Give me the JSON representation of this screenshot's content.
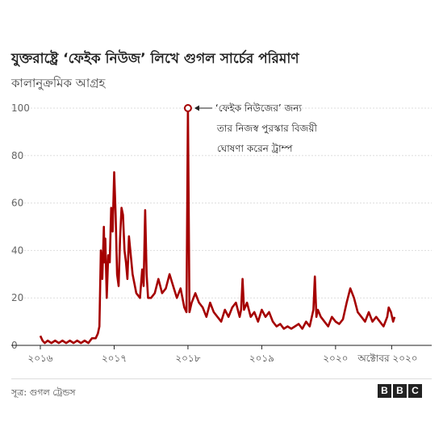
{
  "title": "যুক্তরাষ্ট্রে ‘ফেইক নিউজ’  লিখে গুগল সার্চের পরিমাণ",
  "subtitle": "কালানুক্রমিক আগ্রহ",
  "source": "সূত্র: গুগল ট্রেন্ডস",
  "logo": [
    "B",
    "B",
    "C"
  ],
  "annotation": {
    "lines": [
      "‘ফেইক নিউজের’ জন্য",
      "তার নিজস্ব পুরস্কার বিজয়ী",
      "ঘোষণা করেন ট্রাম্প"
    ],
    "x": 2018.0,
    "y": 100
  },
  "colors": {
    "line": "#a50000",
    "grid": "#dddddd",
    "axis": "#222222"
  },
  "chart_data": {
    "type": "line",
    "title": "যুক্তরাষ্ট্রে ‘ফেইক নিউজ’  লিখে গুগল সার্চের পরিমাণ",
    "ylabel": "কালানুক্রমিক আগ্রহ",
    "xlim": [
      2016.0,
      2020.92
    ],
    "ylim": [
      0,
      100
    ],
    "y_ticks": [
      0,
      20,
      40,
      60,
      80,
      100
    ],
    "x_ticks": [
      {
        "value": 2016.0,
        "label": "২০১৬"
      },
      {
        "value": 2017.0,
        "label": "২০১৭"
      },
      {
        "value": 2018.0,
        "label": "২০১৮"
      },
      {
        "value": 2019.0,
        "label": "২০১৯"
      },
      {
        "value": 2020.0,
        "label": "২০২০"
      },
      {
        "value": 2020.76,
        "label": "অক্টোবর ২০২০"
      }
    ],
    "grid": true,
    "series": [
      {
        "x": [
          2016.0,
          2016.03,
          2016.06,
          2016.1,
          2016.15,
          2016.2,
          2016.25,
          2016.3,
          2016.35,
          2016.4,
          2016.45,
          2016.5,
          2016.55,
          2016.6,
          2016.65,
          2016.7,
          2016.75,
          2016.78,
          2016.8,
          2016.82,
          2016.84,
          2016.86,
          2016.87,
          2016.88,
          2016.9,
          2016.92,
          2016.94,
          2016.96,
          2016.98,
          2017.0,
          2017.02,
          2017.04,
          2017.06,
          2017.08,
          2017.1,
          2017.12,
          2017.14,
          2017.16,
          2017.18,
          2017.2,
          2017.25,
          2017.3,
          2017.35,
          2017.38,
          2017.4,
          2017.42,
          2017.44,
          2017.46,
          2017.5,
          2017.55,
          2017.6,
          2017.65,
          2017.7,
          2017.75,
          2017.8,
          2017.85,
          2017.9,
          2017.95,
          2017.98,
          2018.0,
          2018.02,
          2018.05,
          2018.1,
          2018.15,
          2018.2,
          2018.25,
          2018.3,
          2018.35,
          2018.4,
          2018.45,
          2018.5,
          2018.55,
          2018.6,
          2018.65,
          2018.7,
          2018.72,
          2018.74,
          2018.76,
          2018.8,
          2018.85,
          2018.9,
          2018.95,
          2019.0,
          2019.05,
          2019.1,
          2019.15,
          2019.2,
          2019.25,
          2019.3,
          2019.35,
          2019.4,
          2019.45,
          2019.5,
          2019.55,
          2019.6,
          2019.65,
          2019.7,
          2019.72,
          2019.74,
          2019.76,
          2019.8,
          2019.85,
          2019.9,
          2019.95,
          2020.0,
          2020.05,
          2020.1,
          2020.15,
          2020.2,
          2020.25,
          2020.3,
          2020.35,
          2020.4,
          2020.45,
          2020.5,
          2020.55,
          2020.6,
          2020.65,
          2020.7,
          2020.72,
          2020.75,
          2020.78,
          2020.8
        ],
        "values": [
          4,
          2,
          1,
          2,
          1,
          2,
          1,
          2,
          1,
          2,
          1,
          2,
          1,
          2,
          1,
          3,
          3,
          5,
          8,
          40,
          28,
          50,
          35,
          45,
          20,
          38,
          35,
          58,
          48,
          73,
          55,
          30,
          25,
          45,
          58,
          55,
          40,
          35,
          28,
          46,
          30,
          22,
          20,
          32,
          25,
          57,
          30,
          20,
          20,
          22,
          28,
          22,
          24,
          30,
          25,
          20,
          24,
          16,
          14,
          100,
          14,
          18,
          22,
          18,
          16,
          12,
          18,
          14,
          12,
          10,
          15,
          12,
          16,
          18,
          12,
          15,
          28,
          15,
          18,
          12,
          14,
          10,
          15,
          12,
          14,
          10,
          8,
          9,
          7,
          8,
          7,
          8,
          9,
          7,
          10,
          8,
          15,
          29,
          12,
          15,
          12,
          10,
          8,
          12,
          10,
          9,
          11,
          18,
          24,
          20,
          14,
          12,
          10,
          14,
          10,
          12,
          10,
          8,
          12,
          16,
          14,
          10,
          12
        ]
      }
    ]
  }
}
